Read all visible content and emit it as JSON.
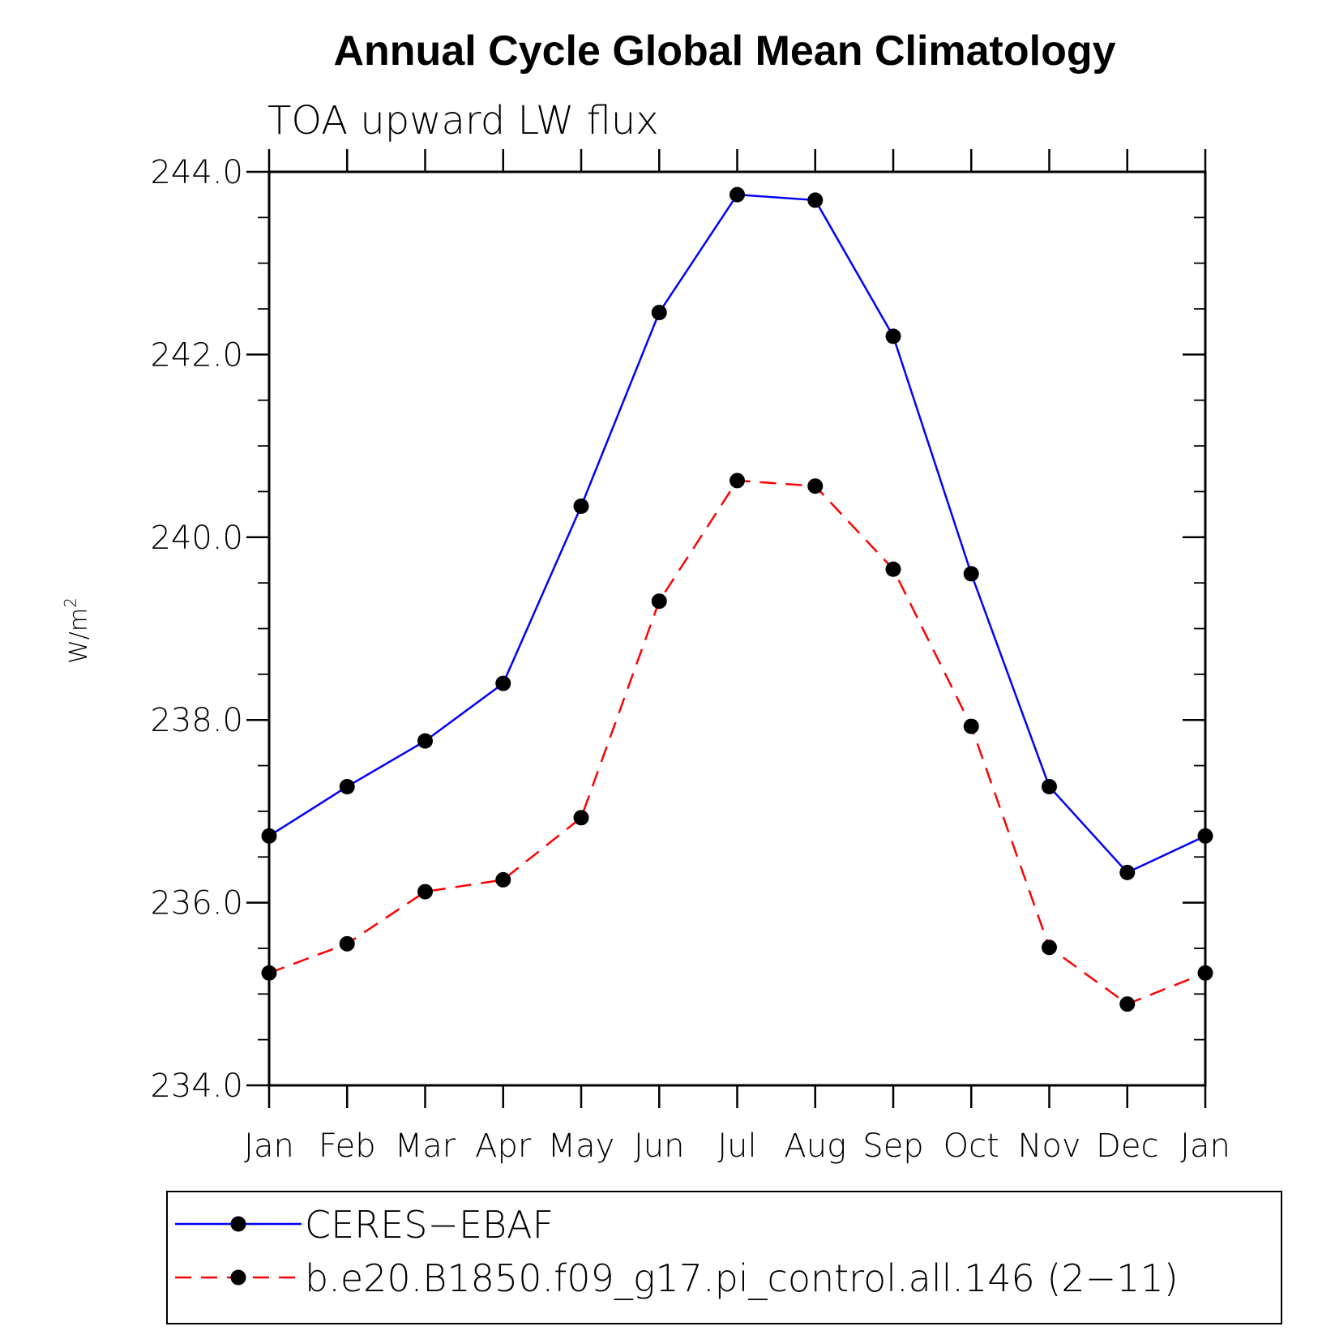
{
  "chart_data": {
    "type": "line",
    "title": "Annual Cycle Global Mean Climatology",
    "subtitle": "TOA upward LW flux",
    "ylabel_base": "W/m",
    "ylabel_sup": "2",
    "xlabel": "",
    "categories": [
      "Jan",
      "Feb",
      "Mar",
      "Apr",
      "May",
      "Jun",
      "Jul",
      "Aug",
      "Sep",
      "Oct",
      "Nov",
      "Dec",
      "Jan"
    ],
    "ylim": [
      234.0,
      244.0
    ],
    "yticks": [
      "234.0",
      "236.0",
      "238.0",
      "240.0",
      "242.0",
      "244.0"
    ],
    "grid": false,
    "legend_position": "bottom",
    "series": [
      {
        "name": "CERES−EBAF",
        "color": "#0000ff",
        "line_style": "solid",
        "marker": "filled-circle",
        "values": [
          236.73,
          237.27,
          237.77,
          238.4,
          240.34,
          242.46,
          243.75,
          243.69,
          242.2,
          239.6,
          237.27,
          236.33,
          236.73
        ]
      },
      {
        "name": "b.e20.B1850.f09_g17.pi_control.all.146 (2−11)",
        "color": "#ff0000",
        "line_style": "dashed",
        "marker": "filled-circle",
        "values": [
          235.23,
          235.55,
          236.12,
          236.25,
          236.93,
          239.3,
          240.62,
          240.56,
          239.65,
          237.93,
          235.51,
          234.89,
          235.23
        ]
      }
    ]
  }
}
